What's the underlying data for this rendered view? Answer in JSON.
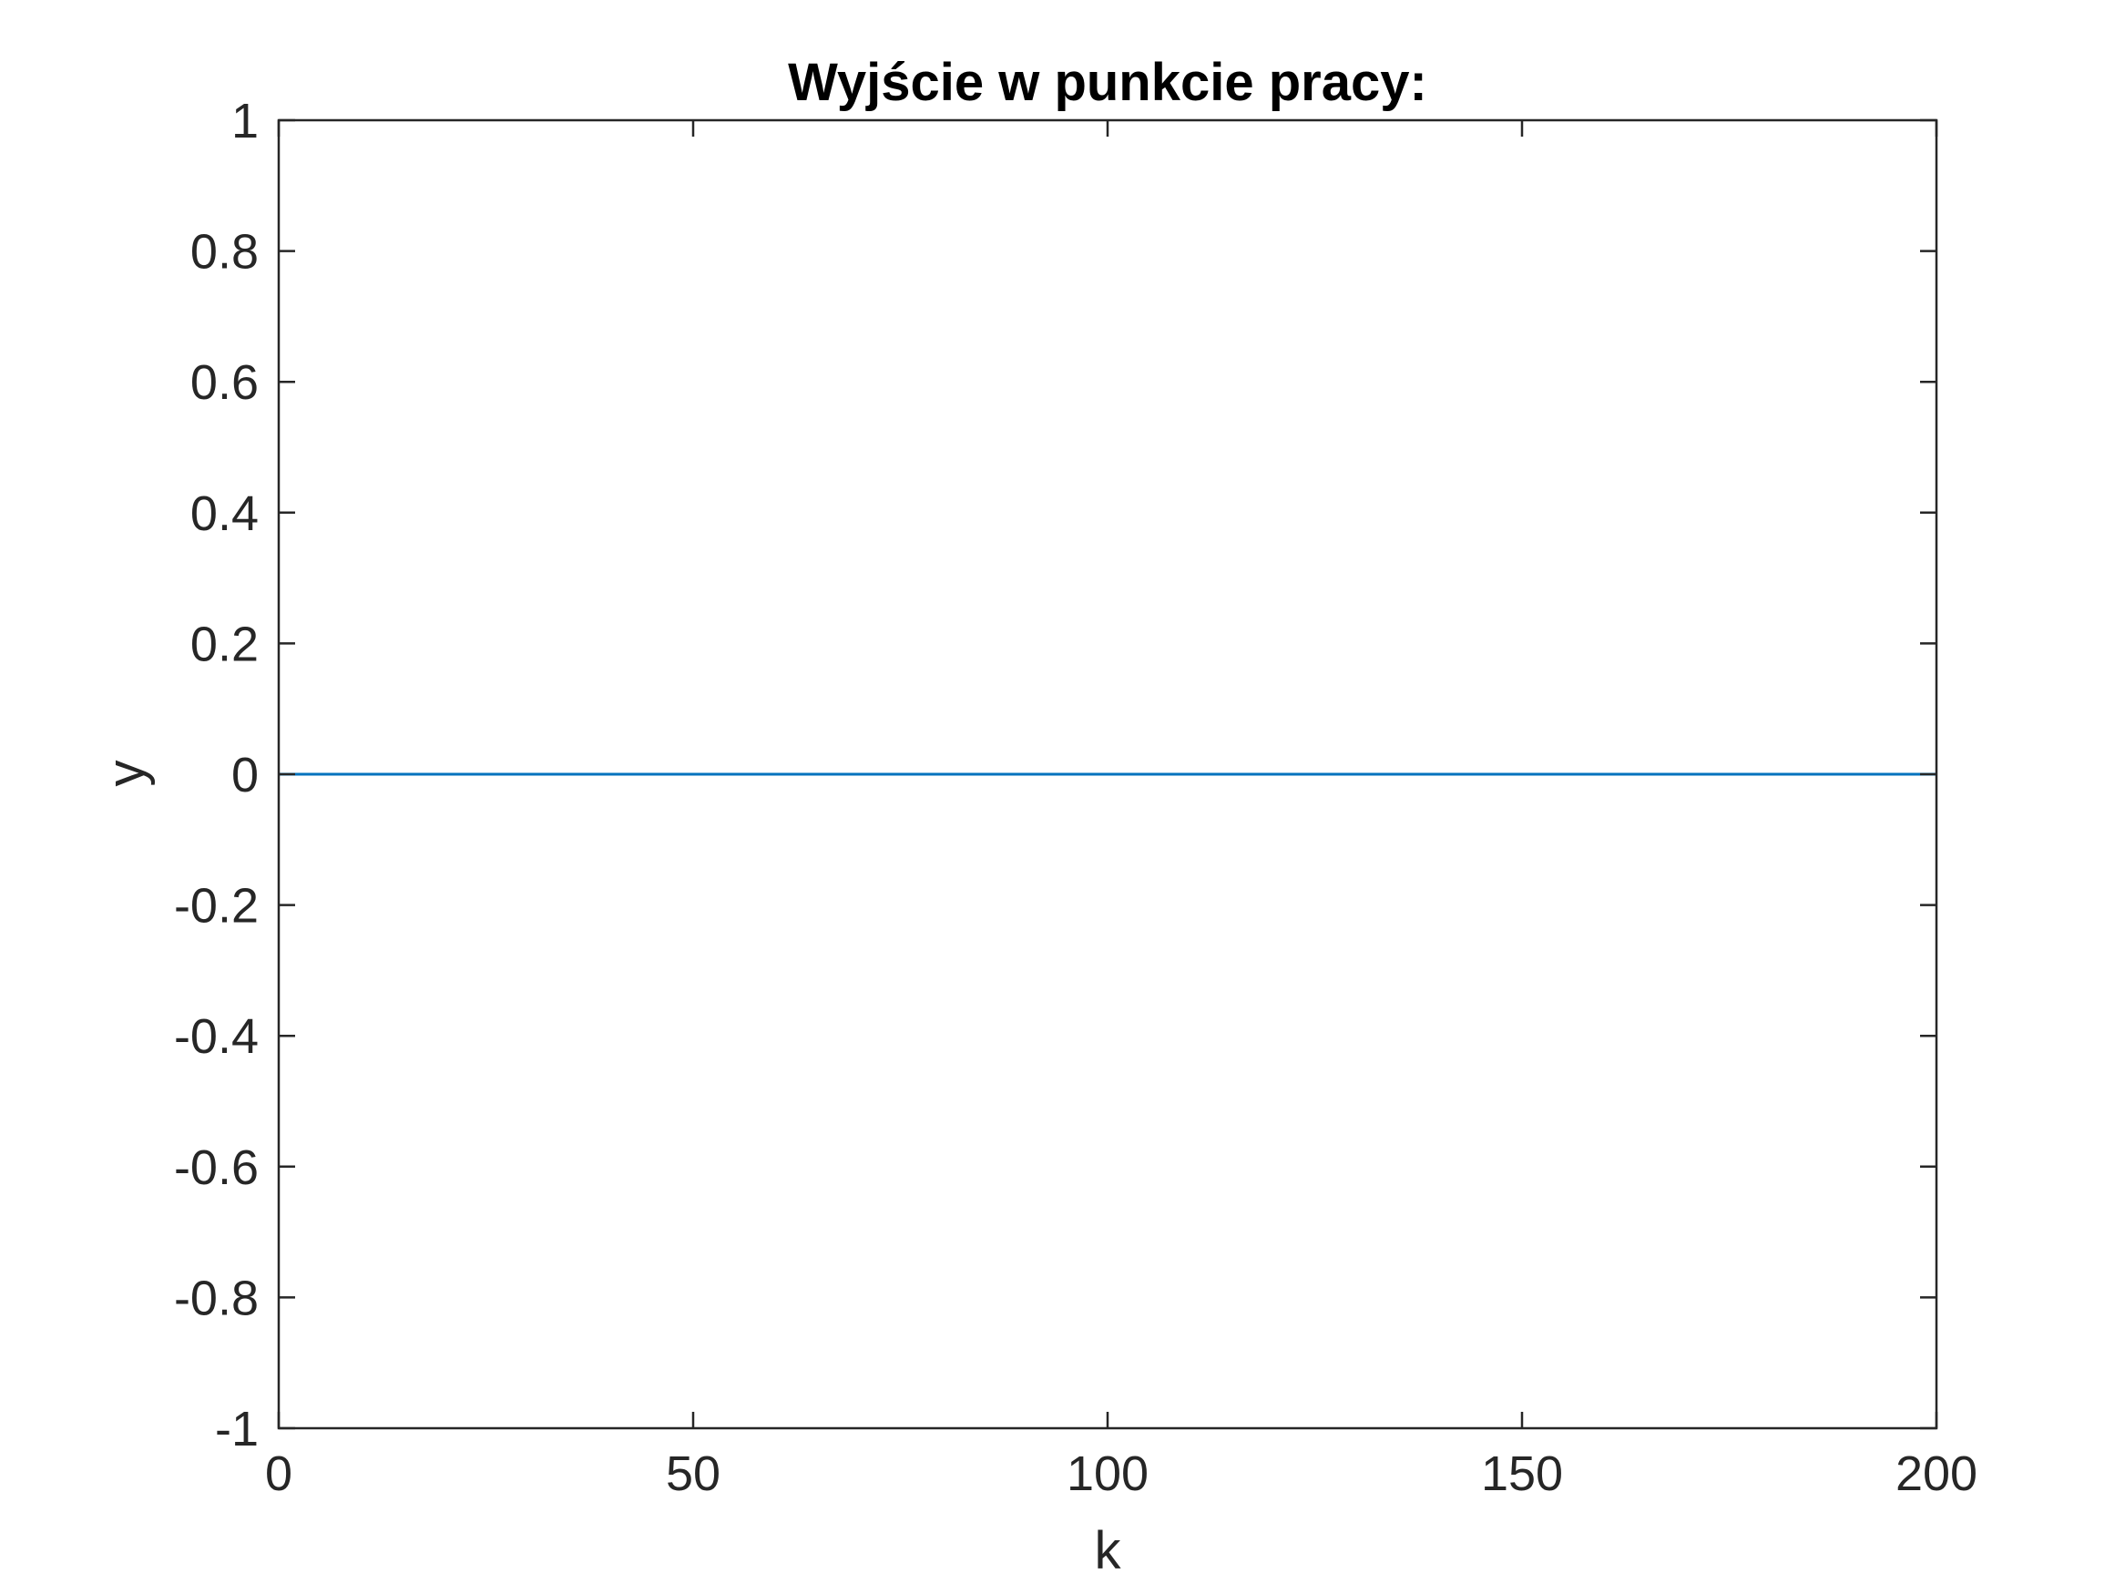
{
  "chart_data": {
    "type": "line",
    "title": "Wyjście w punkcie pracy:",
    "xlabel": "k",
    "ylabel": "y",
    "xlim": [
      0,
      200
    ],
    "ylim": [
      -1,
      1
    ],
    "xticks": [
      0,
      50,
      100,
      150,
      200
    ],
    "yticks": [
      -1,
      -0.8,
      -0.6,
      -0.4,
      -0.2,
      0,
      0.2,
      0.4,
      0.6,
      0.8,
      1
    ],
    "xtick_labels": [
      "0",
      "50",
      "100",
      "150",
      "200"
    ],
    "ytick_labels": [
      "-1",
      "-0.8",
      "-0.6",
      "-0.4",
      "-0.2",
      "0",
      "0.2",
      "0.4",
      "0.6",
      "0.8",
      "1"
    ],
    "grid": false,
    "series": [
      {
        "color": "#0072bd",
        "x": [
          0,
          200
        ],
        "y": [
          0,
          0
        ]
      }
    ]
  }
}
